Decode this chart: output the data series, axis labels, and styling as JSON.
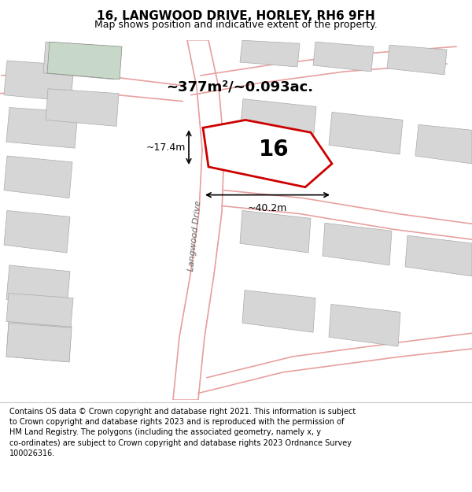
{
  "title": "16, LANGWOOD DRIVE, HORLEY, RH6 9FH",
  "subtitle": "Map shows position and indicative extent of the property.",
  "footer_text": "Contains OS data © Crown copyright and database right 2021. This information is subject\nto Crown copyright and database rights 2023 and is reproduced with the permission of\nHM Land Registry. The polygons (including the associated geometry, namely x, y\nco-ordinates) are subject to Crown copyright and database rights 2023 Ordnance Survey\n100026316.",
  "map_bg": "#f0ede8",
  "road_color": "#e8a0a0",
  "building_fill": "#d6d6d6",
  "highlight_fill": "#c8d8c8",
  "property_outline": "#cc0000",
  "area_text": "~377m²/~0.093ac.",
  "label_16": "16",
  "dim_width": "~40.2m",
  "dim_height": "~17.4m",
  "road_label": "Langwood Drive"
}
